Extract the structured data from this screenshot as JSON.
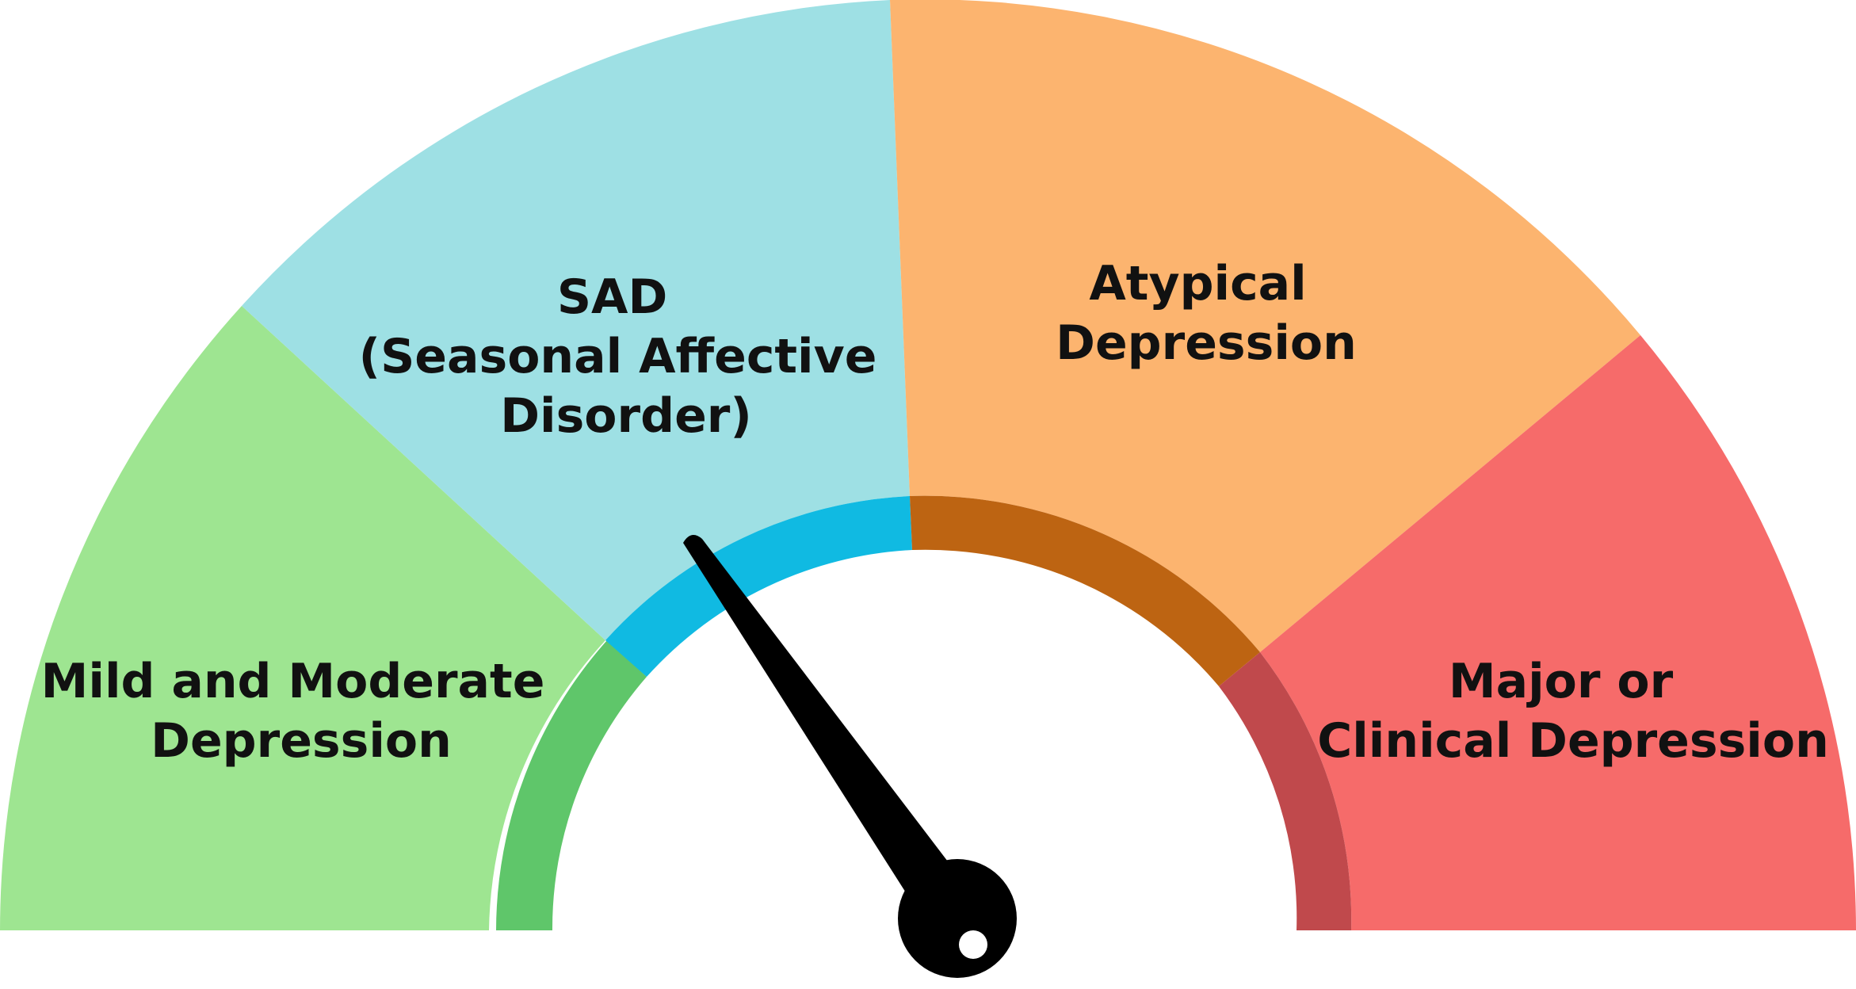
{
  "gauge": {
    "segments": [
      {
        "id": "mild",
        "lines": [
          "Mild and Moderate",
          "Depression"
        ],
        "color": "#9EE591",
        "inner_color": "#5FC66A"
      },
      {
        "id": "sad",
        "lines": [
          "SAD",
          "(Seasonal Affective",
          "Disorder)"
        ],
        "color": "#9EE0E4",
        "inner_color": "#10BAE2"
      },
      {
        "id": "atypical",
        "lines": [
          "Atypical",
          "Depression"
        ],
        "color": "#FCB46F",
        "inner_color": "#BD6412"
      },
      {
        "id": "major",
        "lines": [
          "Major or",
          "Clinical Depression"
        ],
        "color": "#F66B6A",
        "inner_color": "#C0494C"
      }
    ],
    "needle_color": "#000000",
    "needle_points_to": "SAD (Seasonal Affective Disorder)"
  }
}
